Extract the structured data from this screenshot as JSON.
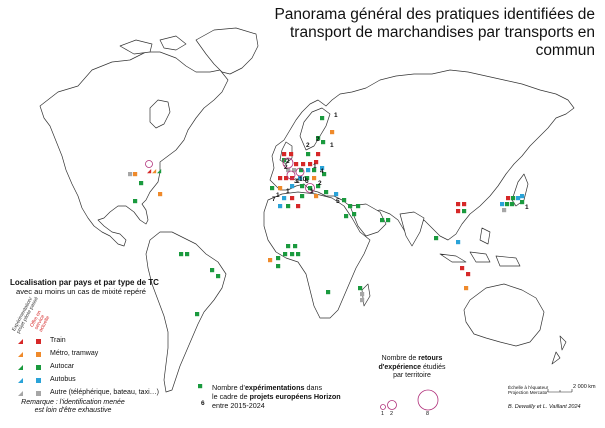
{
  "title": {
    "line1": "Panorama général des pratiques identifiées de",
    "line2": "transport de marchandises par transports en commun"
  },
  "colors": {
    "train": "#d62828",
    "metro_tramway": "#ef8a2b",
    "autocar": "#1a9a3e",
    "autobus": "#2aa3d8",
    "autre": "#a6a6a6",
    "land": "#ffffff",
    "coast": "#333333",
    "retours_circle": "#b0307a"
  },
  "legend": {
    "title_bold": "Localisation par pays et par type de TC",
    "title_sub": "avec au moins un cas de mixité repéré",
    "col_experimentation": "Expérimentation/ projet pilote passé",
    "col_offre": "Offre en service actuelle",
    "categories": [
      {
        "key": "train",
        "label": "Train"
      },
      {
        "key": "metro_tramway",
        "label": "Métro, tramway"
      },
      {
        "key": "autocar",
        "label": "Autocar"
      },
      {
        "key": "autobus",
        "label": "Autobus"
      },
      {
        "key": "autre",
        "label": "Autre (téléphérique, bateau, taxi…)"
      }
    ],
    "remark_line1": "Remarque : l'identification menée",
    "remark_line2": "est loin d'être exhaustive"
  },
  "experimentations": {
    "example_number": "6",
    "line1_pre": "Nombre d'",
    "line1_bold": "expérimentations",
    "line1_post": " dans",
    "line2_pre": "le cadre de ",
    "line2_bold": "projets européens Horizon",
    "line3": "entre 2015-2024"
  },
  "retours": {
    "line1_pre": "Nombre de ",
    "line1_bold": "retours",
    "line2_bold": "d'expérience",
    "line2_post": " étudiés",
    "line3": "par territoire",
    "sizes": [
      "1",
      "2",
      "8"
    ]
  },
  "scale": {
    "note1": "Échelle à l'équateur",
    "note2": "Projection Mercator",
    "distance": "2 000 km"
  },
  "credit": "B. Dewailly et L. Vaillant 2024",
  "map_labels": {
    "europe_numbers": [
      "1",
      "2",
      "2",
      "1",
      "2",
      "3",
      "2",
      "1",
      "10",
      "4",
      "2",
      "1",
      "1",
      "7",
      "5",
      "1",
      "6",
      "1"
    ],
    "japan_number": "1"
  }
}
